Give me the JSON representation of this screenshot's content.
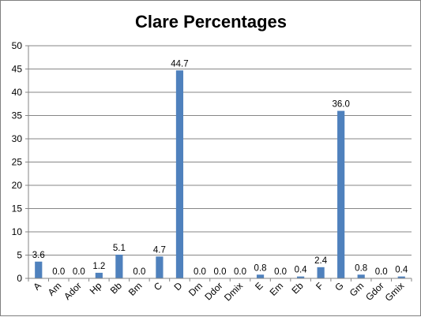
{
  "chart_data": {
    "type": "bar",
    "title": "Clare Percentages",
    "categories": [
      "A",
      "Am",
      "Ador",
      "Hp",
      "Bb",
      "Bm",
      "C",
      "D",
      "Dm",
      "Ddor",
      "Dmix",
      "E",
      "Em",
      "Eb",
      "F",
      "G",
      "Gm",
      "Gdor",
      "Gmix"
    ],
    "values": [
      3.6,
      0.0,
      0.0,
      1.2,
      5.1,
      0.0,
      4.7,
      44.7,
      0.0,
      0.0,
      0.0,
      0.8,
      0.0,
      0.4,
      2.4,
      36.0,
      0.8,
      0.0,
      0.4
    ],
    "data_labels": [
      "3.6",
      "0.0",
      "0.0",
      "1.2",
      "5.1",
      "0.0",
      "4.7",
      "44.7",
      "0.0",
      "0.0",
      "0.0",
      "0.8",
      "0.0",
      "0.4",
      "2.4",
      "36.0",
      "0.8",
      "0.0",
      "0.4"
    ],
    "ylim": [
      0,
      50
    ],
    "yticks": [
      "0",
      "5",
      "10",
      "15",
      "20",
      "25",
      "30",
      "35",
      "40",
      "45",
      "50"
    ],
    "xlabel": "",
    "ylabel": "",
    "grid": true,
    "legend": false,
    "bar_color": "#4f81bd",
    "grid_color": "#868686"
  }
}
